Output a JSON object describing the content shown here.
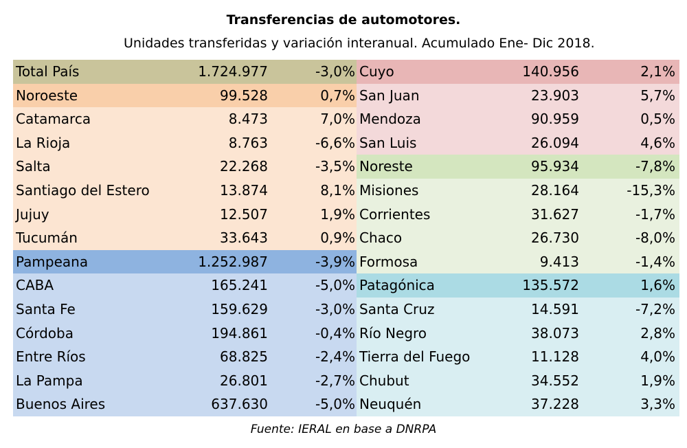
{
  "header": {
    "title": "Transferencias de automotores.",
    "subtitle": "Unidades transferidas y variación interanual. Acumulado Ene- Dic 2018."
  },
  "colors": {
    "total": "#c9c49b",
    "noroeste_head": "#f9cfaa",
    "noroeste": "#fce5d2",
    "pampeana_head": "#8eb3e0",
    "pampeana": "#c8d9f0",
    "cuyo_head": "#e8b6b6",
    "cuyo": "#f3d9da",
    "noreste_head": "#d4e6bf",
    "noreste": "#e9f1df",
    "patagonica_head": "#abdbe4",
    "patagonica": "#d9eef2"
  },
  "left": [
    {
      "name": "Total País",
      "units": "1.724.977",
      "var": "-3,0%",
      "color": "total"
    },
    {
      "name": "Noroeste",
      "units": "99.528",
      "var": "0,7%",
      "color": "noroeste_head"
    },
    {
      "name": "Catamarca",
      "units": "8.473",
      "var": "7,0%",
      "color": "noroeste"
    },
    {
      "name": "La Rioja",
      "units": "8.763",
      "var": "-6,6%",
      "color": "noroeste"
    },
    {
      "name": "Salta",
      "units": "22.268",
      "var": "-3,5%",
      "color": "noroeste"
    },
    {
      "name": "Santiago del Estero",
      "units": "13.874",
      "var": "8,1%",
      "color": "noroeste"
    },
    {
      "name": "Jujuy",
      "units": "12.507",
      "var": "1,9%",
      "color": "noroeste"
    },
    {
      "name": "Tucumán",
      "units": "33.643",
      "var": "0,9%",
      "color": "noroeste"
    },
    {
      "name": "Pampeana",
      "units": "1.252.987",
      "var": "-3,9%",
      "color": "pampeana_head"
    },
    {
      "name": "CABA",
      "units": "165.241",
      "var": "-5,0%",
      "color": "pampeana"
    },
    {
      "name": "Santa Fe",
      "units": "159.629",
      "var": "-3,0%",
      "color": "pampeana"
    },
    {
      "name": "Córdoba",
      "units": "194.861",
      "var": "-0,4%",
      "color": "pampeana"
    },
    {
      "name": "Entre Ríos",
      "units": "68.825",
      "var": "-2,4%",
      "color": "pampeana"
    },
    {
      "name": "La Pampa",
      "units": "26.801",
      "var": "-2,7%",
      "color": "pampeana"
    },
    {
      "name": "Buenos Aires",
      "units": "637.630",
      "var": "-5,0%",
      "color": "pampeana"
    }
  ],
  "right": [
    {
      "name": "Cuyo",
      "units": "140.956",
      "var": "2,1%",
      "color": "cuyo_head"
    },
    {
      "name": "San Juan",
      "units": "23.903",
      "var": "5,7%",
      "color": "cuyo"
    },
    {
      "name": "Mendoza",
      "units": "90.959",
      "var": "0,5%",
      "color": "cuyo"
    },
    {
      "name": "San Luis",
      "units": "26.094",
      "var": "4,6%",
      "color": "cuyo"
    },
    {
      "name": "Noreste",
      "units": "95.934",
      "var": "-7,8%",
      "color": "noreste_head"
    },
    {
      "name": "Misiones",
      "units": "28.164",
      "var": "-15,3%",
      "color": "noreste"
    },
    {
      "name": "Corrientes",
      "units": "31.627",
      "var": "-1,7%",
      "color": "noreste"
    },
    {
      "name": "Chaco",
      "units": "26.730",
      "var": "-8,0%",
      "color": "noreste"
    },
    {
      "name": "Formosa",
      "units": "9.413",
      "var": "-1,4%",
      "color": "noreste"
    },
    {
      "name": "Patagónica",
      "units": "135.572",
      "var": "1,6%",
      "color": "patagonica_head"
    },
    {
      "name": "Santa Cruz",
      "units": "14.591",
      "var": "-7,2%",
      "color": "patagonica"
    },
    {
      "name": "Río Negro",
      "units": "38.073",
      "var": "2,8%",
      "color": "patagonica"
    },
    {
      "name": "Tierra del Fuego",
      "units": "11.128",
      "var": "4,0%",
      "color": "patagonica"
    },
    {
      "name": "Chubut",
      "units": "34.552",
      "var": "1,9%",
      "color": "patagonica"
    },
    {
      "name": "Neuquén",
      "units": "37.228",
      "var": "3,3%",
      "color": "patagonica"
    }
  ],
  "footer": {
    "source": "Fuente: IERAL en base a DNRPA"
  }
}
